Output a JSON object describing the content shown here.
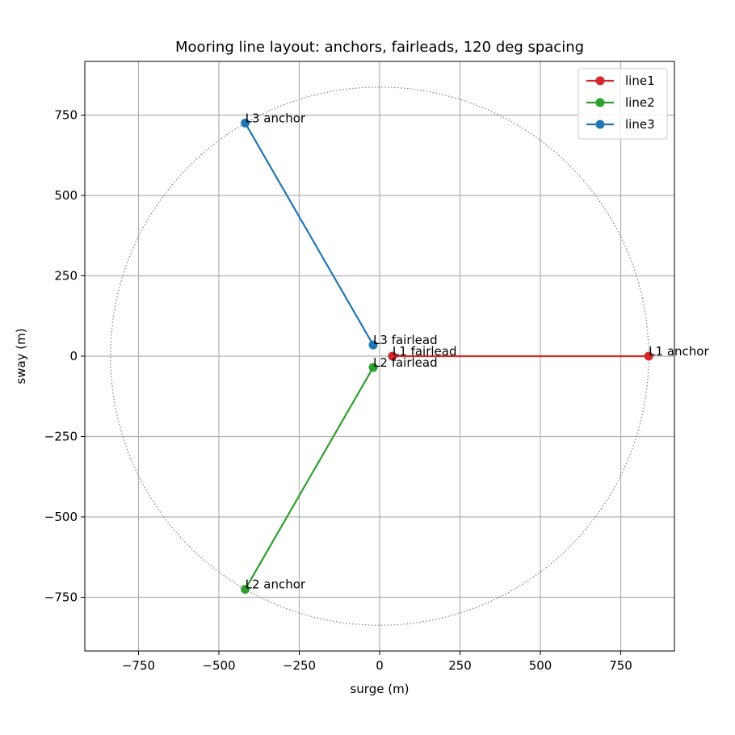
{
  "chart_data": {
    "type": "line",
    "title": "Mooring line layout: anchors, fairleads, 120 deg spacing",
    "xlabel": "surge (m)",
    "ylabel": "sway (m)",
    "xlim": [
      -917,
      917
    ],
    "ylim": [
      -917,
      917
    ],
    "xticks": [
      -750,
      -500,
      -250,
      0,
      250,
      500,
      750
    ],
    "yticks": [
      -750,
      -500,
      -250,
      0,
      250,
      500,
      750
    ],
    "xtick_labels": [
      "−750",
      "−500",
      "−250",
      "0",
      "250",
      "500",
      "750"
    ],
    "ytick_labels": [
      "−750",
      "−500",
      "−250",
      "0",
      "250",
      "500",
      "750"
    ],
    "grid": true,
    "legend_position": "top-right",
    "circle": {
      "radius": 837,
      "style": "dotted",
      "color": "#808080"
    },
    "series": [
      {
        "name": "line1",
        "color": "#d62728",
        "points": [
          [
            40,
            0
          ],
          [
            837,
            0
          ]
        ],
        "point_labels": [
          "L1 fairlead",
          "L1 anchor"
        ]
      },
      {
        "name": "line2",
        "color": "#2ca02c",
        "points": [
          [
            -20,
            -35
          ],
          [
            -418,
            -725
          ]
        ],
        "point_labels": [
          "L2 fairlead",
          "L2 anchor"
        ]
      },
      {
        "name": "line3",
        "color": "#1f77b4",
        "points": [
          [
            -20,
            35
          ],
          [
            -418,
            725
          ]
        ],
        "point_labels": [
          "L3 fairlead",
          "L3 anchor"
        ]
      }
    ]
  }
}
